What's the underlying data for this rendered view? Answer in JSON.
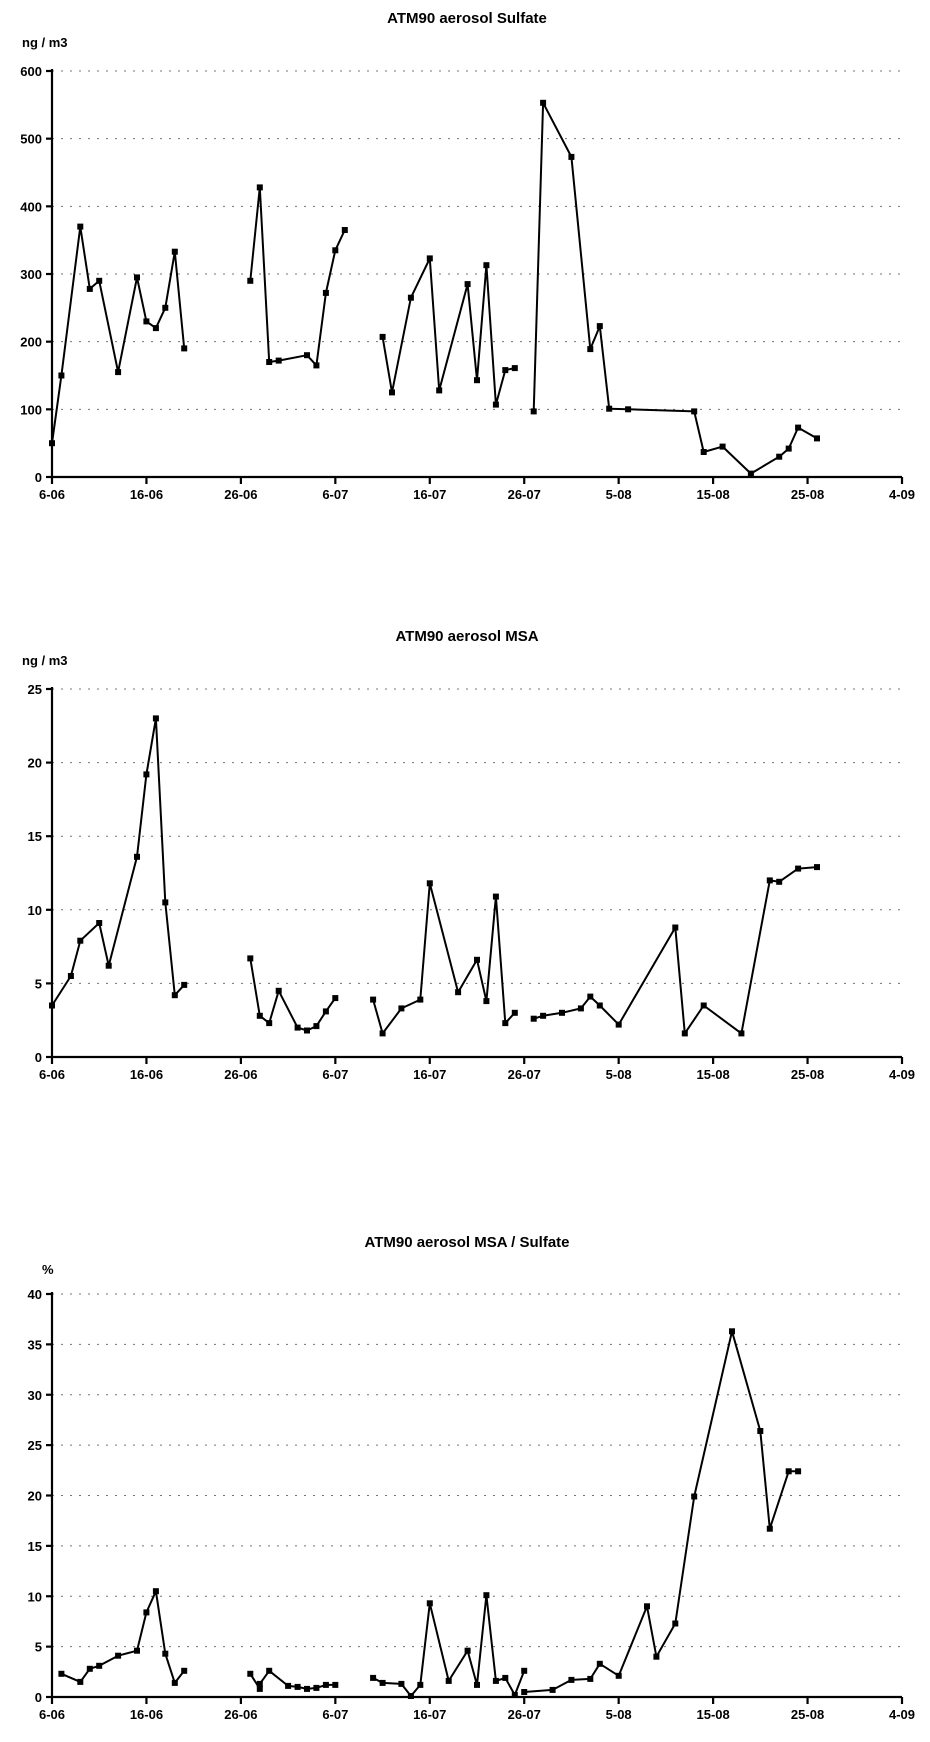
{
  "chart_data": [
    {
      "type": "line",
      "title": "ATM90 aerosol Sulfate",
      "ylabel": "ng / m3",
      "ylim": [
        0,
        600
      ],
      "yticks": [
        0,
        100,
        200,
        300,
        400,
        500,
        600
      ],
      "xlim": [
        "6-06",
        "4-09"
      ],
      "xticks": [
        "6-06",
        "16-06",
        "26-06",
        "6-07",
        "16-07",
        "26-07",
        "5-08",
        "15-08",
        "25-08",
        "4-09"
      ],
      "grid": true,
      "segments": [
        {
          "x": [
            "6-06",
            "7-06",
            "9-06",
            "10-06",
            "11-06",
            "13-06",
            "15-06",
            "16-06",
            "17-06",
            "18-06",
            "19-06",
            "20-06"
          ],
          "y": [
            50,
            150,
            370,
            278,
            290,
            155,
            295,
            230,
            220,
            250,
            333,
            190
          ]
        },
        {
          "x": [
            "27-06",
            "28-06",
            "29-06",
            "30-06",
            "3-07",
            "4-07",
            "5-07",
            "6-07",
            "7-07"
          ],
          "y": [
            290,
            428,
            170,
            172,
            180,
            165,
            272,
            335,
            365
          ]
        },
        {
          "x": [
            "11-07",
            "12-07",
            "14-07",
            "16-07",
            "17-07",
            "20-07",
            "21-07",
            "22-07",
            "23-07",
            "24-07",
            "25-07"
          ],
          "y": [
            207,
            125,
            265,
            323,
            128,
            285,
            143,
            313,
            107,
            158,
            161
          ]
        },
        {
          "x": [
            "27-07",
            "28-07",
            "31-07",
            "2-08",
            "3-08",
            "4-08",
            "6-08",
            "13-08",
            "14-08",
            "16-08",
            "19-08",
            "22-08",
            "23-08",
            "24-08",
            "26-08"
          ],
          "y": [
            97,
            553,
            473,
            189,
            223,
            101,
            100,
            97,
            37,
            45,
            5,
            30,
            42,
            73,
            57
          ]
        }
      ]
    },
    {
      "type": "line",
      "title": "ATM90 aerosol MSA",
      "ylabel": "ng / m3",
      "ylim": [
        0,
        25
      ],
      "yticks": [
        0,
        5,
        10,
        15,
        20,
        25
      ],
      "xlim": [
        "6-06",
        "4-09"
      ],
      "xticks": [
        "6-06",
        "16-06",
        "26-06",
        "6-07",
        "16-07",
        "26-07",
        "5-08",
        "15-08",
        "25-08",
        "4-09"
      ],
      "grid": true,
      "segments": [
        {
          "x": [
            "6-06",
            "8-06",
            "9-06",
            "11-06",
            "12-06",
            "15-06",
            "16-06",
            "17-06",
            "18-06",
            "19-06",
            "20-06"
          ],
          "y": [
            3.5,
            5.5,
            7.9,
            9.1,
            6.2,
            13.6,
            19.2,
            23.0,
            10.5,
            4.2,
            4.9
          ]
        },
        {
          "x": [
            "27-06",
            "28-06",
            "29-06",
            "30-06",
            "2-07",
            "3-07",
            "4-07",
            "5-07",
            "6-07"
          ],
          "y": [
            6.7,
            2.8,
            2.3,
            4.5,
            2.0,
            1.8,
            2.1,
            3.1,
            4.0
          ]
        },
        {
          "x": [
            "10-07",
            "11-07",
            "13-07",
            "15-07",
            "16-07",
            "19-07",
            "21-07",
            "22-07",
            "23-07",
            "24-07",
            "25-07"
          ],
          "y": [
            3.9,
            1.6,
            3.3,
            3.9,
            11.8,
            4.4,
            6.6,
            3.8,
            10.9,
            2.3,
            3.0
          ]
        },
        {
          "x": [
            "27-07",
            "28-07",
            "30-07",
            "1-08",
            "2-08",
            "3-08",
            "5-08",
            "11-08",
            "12-08",
            "14-08",
            "18-08",
            "21-08",
            "22-08",
            "24-08",
            "26-08"
          ],
          "y": [
            2.6,
            2.8,
            3.0,
            3.3,
            4.1,
            3.5,
            2.2,
            8.8,
            1.6,
            3.5,
            1.6,
            12.0,
            11.9,
            12.8,
            12.9
          ]
        }
      ]
    },
    {
      "type": "line",
      "title": "ATM90 aerosol MSA / Sulfate",
      "ylabel": "%",
      "ylim": [
        0,
        40
      ],
      "yticks": [
        0,
        5,
        10,
        15,
        20,
        25,
        30,
        35,
        40
      ],
      "xlim": [
        "6-06",
        "4-09"
      ],
      "xticks": [
        "6-06",
        "16-06",
        "26-06",
        "6-07",
        "16-07",
        "26-07",
        "5-08",
        "15-08",
        "25-08",
        "4-09"
      ],
      "grid": true,
      "segments": [
        {
          "x": [
            "7-06",
            "9-06",
            "10-06",
            "11-06",
            "13-06",
            "15-06",
            "16-06",
            "17-06",
            "18-06",
            "19-06",
            "20-06"
          ],
          "y": [
            2.3,
            1.5,
            2.8,
            3.1,
            4.1,
            4.6,
            8.4,
            10.5,
            4.3,
            1.4,
            2.6
          ]
        },
        {
          "x": [
            "27-06",
            "28-06",
            "28-06",
            "29-06",
            "1-07",
            "2-07",
            "3-07",
            "4-07",
            "5-07",
            "6-07"
          ],
          "y": [
            2.3,
            0.8,
            1.3,
            2.6,
            1.1,
            1.0,
            0.8,
            0.9,
            1.2,
            1.2
          ]
        },
        {
          "x": [
            "10-07",
            "11-07",
            "13-07",
            "14-07",
            "15-07",
            "16-07",
            "18-07",
            "20-07",
            "21-07",
            "22-07",
            "23-07",
            "24-07",
            "25-07",
            "26-07"
          ],
          "y": [
            1.9,
            1.4,
            1.3,
            0.1,
            1.2,
            9.3,
            1.6,
            4.6,
            1.2,
            10.1,
            1.6,
            1.9,
            0.2,
            2.6
          ]
        },
        {
          "x": [
            "26-07",
            "29-07",
            "31-07",
            "2-08",
            "3-08",
            "5-08",
            "8-08",
            "9-08",
            "11-08",
            "13-08",
            "17-08",
            "20-08",
            "21-08",
            "23-08",
            "24-08"
          ],
          "y": [
            0.5,
            0.7,
            1.7,
            1.8,
            3.3,
            2.1,
            9.0,
            4.0,
            7.3,
            19.9,
            36.3,
            26.4,
            16.7,
            22.4,
            22.4
          ]
        }
      ]
    }
  ]
}
